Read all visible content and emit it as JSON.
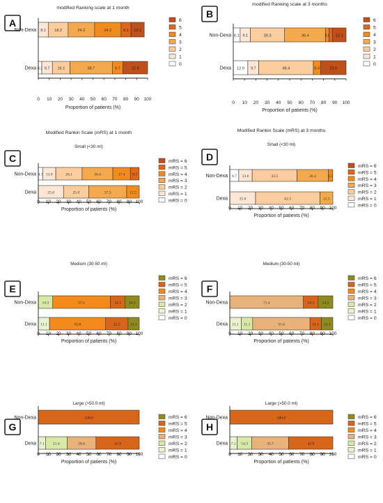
{
  "palettes": {
    "orange": [
      "#ffffff",
      "#fde6d4",
      "#fbcd9c",
      "#f5a94d",
      "#f28a1c",
      "#e0661a",
      "#c0501a"
    ],
    "olive": [
      "#ffffff",
      "#eaf3d0",
      "#d8e8a5",
      "#e9b27a",
      "#f28a1c",
      "#d8661a",
      "#8f8a1e"
    ]
  },
  "chart_data": [
    {
      "id": "A",
      "type": "bar",
      "orientation": "horizontal",
      "stacked": true,
      "title": "modified Ranking scale at 1 month",
      "subtitle": "",
      "xlabel": "Proportion of patients (%)",
      "xlim": [
        0,
        100
      ],
      "xticks": [
        0,
        10,
        20,
        30,
        40,
        50,
        60,
        70,
        80,
        90,
        100
      ],
      "categories": [
        "Non-Dexa",
        "Dexa"
      ],
      "legend": [
        "6",
        "5",
        "4",
        "3",
        "2",
        "1",
        "0"
      ],
      "palette": "orange",
      "data_label_font": "sans",
      "series": [
        {
          "name": "0",
          "values": [
            0,
            3.2
          ]
        },
        {
          "name": "1",
          "values": [
            9.1,
            9.7
          ]
        },
        {
          "name": "2",
          "values": [
            18.2,
            16.1
          ]
        },
        {
          "name": "3",
          "values": [
            24.2,
            38.7
          ]
        },
        {
          "name": "4",
          "values": [
            24.2,
            9.7
          ]
        },
        {
          "name": "5",
          "values": [
            9.1,
            0
          ]
        },
        {
          "name": "6",
          "values": [
            12.1,
            22.6
          ]
        }
      ],
      "labels": [
        [
          "",
          "9.1",
          "18.2",
          "24.2",
          "24.2",
          "9.1",
          "12.1"
        ],
        [
          "3.2",
          "9.7",
          "16.1",
          "38.7",
          "9.7",
          "",
          "22.6"
        ]
      ]
    },
    {
      "id": "B",
      "type": "bar",
      "orientation": "horizontal",
      "stacked": true,
      "title": "modified Ranking scale at 3 months",
      "subtitle": "",
      "xlabel": "Proportion of patients (%)",
      "xlim": [
        0,
        100
      ],
      "xticks": [
        0,
        10,
        20,
        30,
        40,
        50,
        60,
        70,
        80,
        90,
        100
      ],
      "categories": [
        "Non-Dexa",
        "Dexa"
      ],
      "legend": [
        "6",
        "5",
        "4",
        "3",
        "2",
        "1",
        "0"
      ],
      "palette": "orange",
      "data_label_font": "sans",
      "series": [
        {
          "name": "0",
          "values": [
            6.1,
            12.9
          ]
        },
        {
          "name": "1",
          "values": [
            9.1,
            9.7
          ]
        },
        {
          "name": "2",
          "values": [
            30.3,
            48.4
          ]
        },
        {
          "name": "3",
          "values": [
            36.4,
            0
          ]
        },
        {
          "name": "4",
          "values": [
            3.0,
            6.4
          ]
        },
        {
          "name": "5",
          "values": [
            3.0,
            0
          ]
        },
        {
          "name": "6",
          "values": [
            12.1,
            22.6
          ]
        }
      ],
      "labels": [
        [
          "6.1",
          "9.1",
          "30.3",
          "36.4",
          "3.0",
          "",
          "12.1"
        ],
        [
          "12.9",
          "9.7",
          "48.4",
          "",
          "6.4",
          "",
          "22.6"
        ]
      ]
    },
    {
      "id": "C",
      "type": "bar",
      "orientation": "horizontal",
      "stacked": true,
      "title": "Modified Rankin Scale (mRS) at 1 month",
      "subtitle": "Small (<30 ml)",
      "xlabel": "Proportion of patients (%)",
      "xlim": [
        0,
        100
      ],
      "xticks": [
        0,
        10,
        20,
        30,
        40,
        50,
        60,
        70,
        80,
        90,
        100
      ],
      "categories": [
        "Non-Dexa",
        "Dexa"
      ],
      "legend": [
        "mRS = 6",
        "mRS = 5",
        "mRS = 4",
        "mRS = 3",
        "mRS = 2",
        "mRS = 1",
        "mRS = 0"
      ],
      "palette": "orange",
      "data_label_font": "serif",
      "series": [
        {
          "name": "mRS = 0",
          "values": [
            4.3,
            0
          ]
        },
        {
          "name": "mRS = 1",
          "values": [
            13.0,
            25.0
          ]
        },
        {
          "name": "mRS = 2",
          "values": [
            26.1,
            25.0
          ]
        },
        {
          "name": "mRS = 3",
          "values": [
            30.4,
            37.5
          ]
        },
        {
          "name": "mRS = 4",
          "values": [
            17.4,
            12.5
          ]
        },
        {
          "name": "mRS = 5",
          "values": [
            8.7,
            0
          ]
        },
        {
          "name": "mRS = 6",
          "values": [
            0,
            0
          ]
        }
      ],
      "labels": [
        [
          "4.3",
          "13.0",
          "26.1",
          "30.4",
          "17.4",
          "8.7",
          ""
        ],
        [
          "",
          "25.0",
          "25.0",
          "37.5",
          "12.5",
          "",
          ""
        ]
      ]
    },
    {
      "id": "D",
      "type": "bar",
      "orientation": "horizontal",
      "stacked": true,
      "title": "Modified Rankin Scale (mRS) at 3 months",
      "subtitle": "Small (<30 ml)",
      "xlabel": "Proportion of patients (%)",
      "xlim": [
        0,
        100
      ],
      "xticks": [
        0,
        10,
        20,
        30,
        40,
        50,
        60,
        70,
        80,
        90,
        100
      ],
      "categories": [
        "Non-Dexa",
        "Dexa"
      ],
      "legend": [
        "mRS = 6",
        "mRS = 5",
        "mRS = 4",
        "mRS = 3",
        "mRS = 2",
        "mRS = 1",
        "mRS = 0"
      ],
      "palette": "orange",
      "data_label_font": "serif",
      "series": [
        {
          "name": "mRS = 0",
          "values": [
            8.7,
            0
          ]
        },
        {
          "name": "mRS = 1",
          "values": [
            13.0,
            25.0
          ]
        },
        {
          "name": "mRS = 2",
          "values": [
            43.5,
            62.5
          ]
        },
        {
          "name": "mRS = 3",
          "values": [
            30.4,
            12.5
          ]
        },
        {
          "name": "mRS = 4",
          "values": [
            4.3,
            0
          ]
        },
        {
          "name": "mRS = 5",
          "values": [
            0,
            0
          ]
        },
        {
          "name": "mRS = 6",
          "values": [
            0,
            0
          ]
        }
      ],
      "labels": [
        [
          "8.7",
          "13.0",
          "43.5",
          "30.4",
          "4.3",
          "",
          ""
        ],
        [
          "",
          "25.0",
          "62.5",
          "12.5",
          "",
          "",
          ""
        ]
      ]
    },
    {
      "id": "E",
      "type": "bar",
      "orientation": "horizontal",
      "stacked": true,
      "title": "",
      "subtitle": "Medium (30-50 ml)",
      "xlabel": "Proportion of patients (%)",
      "xlim": [
        0,
        100
      ],
      "xticks": [
        0,
        10,
        20,
        30,
        40,
        50,
        60,
        70,
        80,
        90,
        100
      ],
      "categories": [
        "Non-Dexa",
        "Dexa"
      ],
      "legend": [
        "mRS = 6",
        "mRS = 5",
        "mRS = 4",
        "mRS = 3",
        "mRS = 2",
        "mRS = 1",
        "mRS = 0"
      ],
      "palette": "olive",
      "data_label_font": "serif",
      "series": [
        {
          "name": "mRS = 0",
          "values": [
            0,
            0
          ]
        },
        {
          "name": "mRS = 1",
          "values": [
            0,
            11.1
          ]
        },
        {
          "name": "mRS = 2",
          "values": [
            14.3,
            0
          ]
        },
        {
          "name": "mRS = 3",
          "values": [
            0,
            0
          ]
        },
        {
          "name": "mRS = 4",
          "values": [
            57.1,
            55.6
          ]
        },
        {
          "name": "mRS = 5",
          "values": [
            14.3,
            22.2
          ]
        },
        {
          "name": "mRS = 6",
          "values": [
            14.3,
            11.1
          ]
        }
      ],
      "labels": [
        [
          "",
          "",
          "14.3",
          "",
          "57.1",
          "14.3",
          "14.3"
        ],
        [
          "",
          "11.1",
          "",
          "",
          "55.6",
          "22.2",
          "11.1"
        ]
      ]
    },
    {
      "id": "F",
      "type": "bar",
      "orientation": "horizontal",
      "stacked": true,
      "title": "",
      "subtitle": "Medium (30-50 ml)",
      "xlabel": "Proportion of patients (%)",
      "xlim": [
        0,
        100
      ],
      "xticks": [
        0,
        10,
        20,
        30,
        40,
        50,
        60,
        70,
        80,
        90,
        100
      ],
      "categories": [
        "Non-Dexa",
        "Dexa"
      ],
      "legend": [
        "mRS = 6",
        "mRS = 5",
        "mRS = 4",
        "mRS = 3",
        "mRS = 2",
        "mRS = 1",
        "mRS = 0"
      ],
      "palette": "olive",
      "data_label_font": "serif",
      "series": [
        {
          "name": "mRS = 0",
          "values": [
            0,
            0
          ]
        },
        {
          "name": "mRS = 1",
          "values": [
            0,
            11.1
          ]
        },
        {
          "name": "mRS = 2",
          "values": [
            0,
            11.1
          ]
        },
        {
          "name": "mRS = 3",
          "values": [
            71.4,
            55.6
          ]
        },
        {
          "name": "mRS = 4",
          "values": [
            0,
            0
          ]
        },
        {
          "name": "mRS = 5",
          "values": [
            14.3,
            11.1
          ]
        },
        {
          "name": "mRS = 6",
          "values": [
            14.3,
            11.1
          ]
        }
      ],
      "labels": [
        [
          "",
          "",
          "",
          "71.4",
          "",
          "14.3",
          "14.3"
        ],
        [
          "",
          "11.1",
          "11.1",
          "55.6",
          "",
          "11.1",
          "11.1"
        ]
      ]
    },
    {
      "id": "G",
      "type": "bar",
      "orientation": "horizontal",
      "stacked": true,
      "title": "",
      "subtitle": "Large (>50.0 ml)",
      "xlabel": "Proportion of patients (%)",
      "xlim": [
        0,
        100
      ],
      "xticks": [
        0,
        10,
        20,
        30,
        40,
        50,
        60,
        70,
        80,
        90,
        100
      ],
      "categories": [
        "Non-Dexa",
        "Dexa"
      ],
      "legend": [
        "mRS = 6",
        "mRS = 5",
        "mRS = 4",
        "mRS = 3",
        "mRS = 2",
        "mRS = 1",
        "mRS = 0"
      ],
      "palette": "olive",
      "data_label_font": "serif",
      "series": [
        {
          "name": "mRS = 0",
          "values": [
            0,
            0
          ]
        },
        {
          "name": "mRS = 1",
          "values": [
            0,
            7.1
          ]
        },
        {
          "name": "mRS = 2",
          "values": [
            0,
            21.4
          ]
        },
        {
          "name": "mRS = 3",
          "values": [
            0,
            28.6
          ]
        },
        {
          "name": "mRS = 4",
          "values": [
            0,
            0
          ]
        },
        {
          "name": "mRS = 5",
          "values": [
            100.0,
            42.9
          ]
        },
        {
          "name": "mRS = 6",
          "values": [
            0,
            0
          ]
        }
      ],
      "labels": [
        [
          "",
          "",
          "",
          "",
          "",
          "100.0",
          ""
        ],
        [
          "",
          "7.1",
          "21.4",
          "28.6",
          "",
          "42.9",
          ""
        ]
      ]
    },
    {
      "id": "H",
      "type": "bar",
      "orientation": "horizontal",
      "stacked": true,
      "title": "",
      "subtitle": "Large (>50.0 ml)",
      "xlabel": "Proportion of patients (%)",
      "xlim": [
        0,
        100
      ],
      "xticks": [
        0,
        10,
        20,
        30,
        40,
        50,
        60,
        70,
        80,
        90,
        100
      ],
      "categories": [
        "Non-Dexa",
        "Dexa"
      ],
      "legend": [
        "mRS = 6",
        "mRS = 5",
        "mRS = 4",
        "mRS = 3",
        "mRS = 2",
        "mRS = 1",
        "mRS = 0"
      ],
      "palette": "olive",
      "data_label_font": "serif",
      "series": [
        {
          "name": "mRS = 0",
          "values": [
            0,
            0
          ]
        },
        {
          "name": "mRS = 1",
          "values": [
            0,
            7.1
          ]
        },
        {
          "name": "mRS = 2",
          "values": [
            0,
            14.3
          ]
        },
        {
          "name": "mRS = 3",
          "values": [
            0,
            35.7
          ]
        },
        {
          "name": "mRS = 4",
          "values": [
            0,
            0
          ]
        },
        {
          "name": "mRS = 5",
          "values": [
            100.0,
            42.9
          ]
        },
        {
          "name": "mRS = 6",
          "values": [
            0,
            0
          ]
        }
      ],
      "labels": [
        [
          "",
          "",
          "",
          "",
          "",
          "100.0",
          ""
        ],
        [
          "",
          "7.1",
          "14.3",
          "35.7",
          "",
          "42.9",
          ""
        ]
      ]
    }
  ]
}
